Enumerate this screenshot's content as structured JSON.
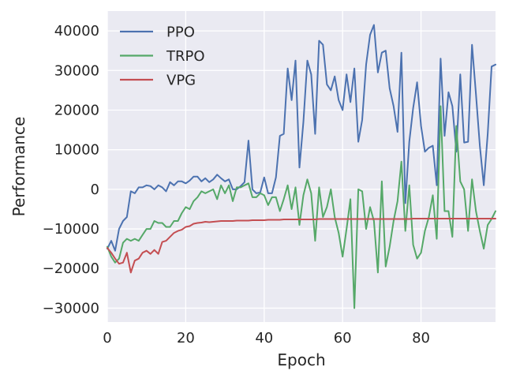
{
  "chart_data": {
    "type": "line",
    "title": "",
    "xlabel": "Epoch",
    "ylabel": "Performance",
    "xlim": [
      0,
      99
    ],
    "ylim": [
      -33500,
      45000
    ],
    "xticks": [
      0,
      20,
      40,
      60,
      80
    ],
    "xtick_labels": [
      "0",
      "20",
      "40",
      "60",
      "80"
    ],
    "yticks": [
      -30000,
      -20000,
      -10000,
      0,
      10000,
      20000,
      30000,
      40000
    ],
    "ytick_labels": [
      "−30000",
      "−20000",
      "−10000",
      "0",
      "10000",
      "20000",
      "30000",
      "40000"
    ],
    "grid": true,
    "legend_position": "upper-left",
    "background_color": "#eaeaf2",
    "x": [
      0,
      1,
      2,
      3,
      4,
      5,
      6,
      7,
      8,
      9,
      10,
      11,
      12,
      13,
      14,
      15,
      16,
      17,
      18,
      19,
      20,
      21,
      22,
      23,
      24,
      25,
      26,
      27,
      28,
      29,
      30,
      31,
      32,
      33,
      34,
      35,
      36,
      37,
      38,
      39,
      40,
      41,
      42,
      43,
      44,
      45,
      46,
      47,
      48,
      49,
      50,
      51,
      52,
      53,
      54,
      55,
      56,
      57,
      58,
      59,
      60,
      61,
      62,
      63,
      64,
      65,
      66,
      67,
      68,
      69,
      70,
      71,
      72,
      73,
      74,
      75,
      76,
      77,
      78,
      79,
      80,
      81,
      82,
      83,
      84,
      85,
      86,
      87,
      88,
      89,
      90,
      91,
      92,
      93,
      94,
      95,
      96,
      97,
      98,
      99
    ],
    "series": [
      {
        "name": "PPO",
        "color": "#4c72b0",
        "values": [
          -15000,
          -13000,
          -15500,
          -10000,
          -8000,
          -7000,
          -500,
          -1000,
          500,
          500,
          1000,
          800,
          0,
          1000,
          500,
          -500,
          1800,
          1000,
          2000,
          2000,
          1500,
          2200,
          3200,
          3200,
          2000,
          2800,
          1800,
          2500,
          3700,
          2800,
          2000,
          2500,
          0,
          0,
          800,
          1800,
          12300,
          0,
          -1000,
          -800,
          3000,
          -1000,
          -1000,
          3000,
          13500,
          14000,
          30500,
          22500,
          32500,
          5500,
          17000,
          32500,
          29000,
          14000,
          37500,
          36500,
          26500,
          25000,
          28500,
          22500,
          20000,
          29000,
          22000,
          30500,
          12000,
          17500,
          31500,
          39000,
          41500,
          29500,
          34500,
          35000,
          25500,
          21000,
          14500,
          34500,
          -3500,
          12000,
          20500,
          27000,
          16000,
          9500,
          10500,
          11000,
          1000,
          33000,
          13500,
          24500,
          21000,
          9500,
          29000,
          11800,
          12000,
          36500,
          24000,
          11000,
          1000,
          14000,
          31000,
          31500
        ]
      },
      {
        "name": "TRPO",
        "color": "#55a868",
        "values": [
          -14500,
          -17000,
          -18500,
          -17500,
          -13500,
          -12500,
          -13000,
          -12500,
          -13000,
          -11500,
          -10000,
          -10000,
          -8000,
          -8500,
          -8500,
          -9500,
          -9500,
          -8000,
          -8000,
          -6000,
          -4500,
          -5000,
          -3000,
          -2000,
          -500,
          -1000,
          -500,
          0,
          -2500,
          1000,
          -1000,
          1000,
          -3000,
          500,
          500,
          1000,
          1500,
          -2000,
          -2000,
          -1000,
          -1500,
          -4000,
          -2000,
          -2000,
          -5500,
          -2500,
          1000,
          -5000,
          500,
          -9000,
          -1500,
          2500,
          -1000,
          -13000,
          500,
          -7000,
          -4500,
          0,
          -7000,
          -11000,
          -17000,
          -10000,
          -2500,
          -30000,
          0,
          -500,
          -10000,
          -4500,
          -8000,
          -21000,
          2000,
          -19500,
          -14500,
          -8000,
          -3000,
          7000,
          -10500,
          1000,
          -14000,
          -17500,
          -16000,
          -10500,
          -7000,
          -1500,
          -12500,
          21000,
          -5500,
          -5500,
          -12000,
          16000,
          2000,
          0,
          -10500,
          2500,
          -5500,
          -10500,
          -15000,
          -9000,
          -7500,
          -5500
        ]
      },
      {
        "name": "VPG",
        "color": "#c44e52",
        "values": [
          -14800,
          -16000,
          -17500,
          -18800,
          -18500,
          -16000,
          -21000,
          -18000,
          -17500,
          -16000,
          -15500,
          -16300,
          -15300,
          -16300,
          -13300,
          -13000,
          -12000,
          -11000,
          -10500,
          -10200,
          -9500,
          -9300,
          -8700,
          -8500,
          -8400,
          -8200,
          -8300,
          -8200,
          -8100,
          -8000,
          -8000,
          -8000,
          -8000,
          -7900,
          -7900,
          -7900,
          -7900,
          -7800,
          -7800,
          -7800,
          -7800,
          -7700,
          -7700,
          -7700,
          -7700,
          -7600,
          -7600,
          -7600,
          -7600,
          -7600,
          -7600,
          -7600,
          -7600,
          -7600,
          -7500,
          -7500,
          -7500,
          -7500,
          -7500,
          -7500,
          -7500,
          -7500,
          -7500,
          -7500,
          -7500,
          -7500,
          -7500,
          -7500,
          -7500,
          -7500,
          -7500,
          -7500,
          -7500,
          -7500,
          -7500,
          -7500,
          -7500,
          -7500,
          -7400,
          -7400,
          -7400,
          -7400,
          -7400,
          -7400,
          -7400,
          -7400,
          -7400,
          -7400,
          -7400,
          -7400,
          -7400,
          -7400,
          -7400,
          -7400,
          -7400,
          -7400,
          -7400,
          -7400,
          -7400,
          -7400
        ]
      }
    ]
  }
}
